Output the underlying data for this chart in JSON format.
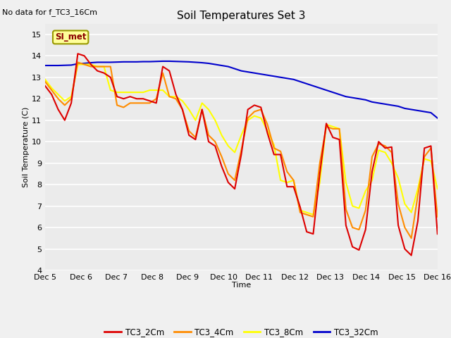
{
  "title": "Soil Temperatures Set 3",
  "subtitle": "No data for f_TC3_16Cm",
  "xlabel": "Time",
  "ylabel": "Soil Temperature (C)",
  "ylim": [
    4.0,
    15.5
  ],
  "figure_bg": "#f0f0f0",
  "plot_bg": "#e8e8e8",
  "si_met_label": "SI_met",
  "legend_entries": [
    "TC3_2Cm",
    "TC3_4Cm",
    "TC3_8Cm",
    "TC3_32Cm"
  ],
  "line_colors": [
    "#dd0000",
    "#ff8c00",
    "#ffff00",
    "#0000cc"
  ],
  "x_tick_labels": [
    "Dec 5",
    "Dec 6",
    "Dec 7",
    "Dec 8",
    "Dec 9",
    "Dec 10",
    "Dec 11",
    "Dec 12",
    "Dec 13",
    "Dec 14",
    "Dec 15",
    "Dec 16"
  ],
  "tc3_2cm": [
    12.6,
    12.2,
    11.5,
    11.0,
    11.8,
    14.1,
    14.0,
    13.6,
    13.3,
    13.2,
    13.0,
    12.1,
    12.0,
    12.1,
    12.0,
    12.0,
    11.9,
    11.8,
    13.5,
    13.3,
    12.2,
    11.5,
    10.3,
    10.1,
    11.5,
    10.0,
    9.8,
    8.85,
    8.1,
    7.8,
    9.4,
    11.5,
    11.7,
    11.6,
    10.4,
    9.4,
    9.4,
    7.9,
    7.9,
    6.95,
    5.8,
    5.7,
    8.5,
    10.85,
    10.2,
    10.1,
    6.1,
    5.1,
    4.95,
    5.9,
    8.6,
    10.0,
    9.7,
    9.75,
    6.1,
    5.0,
    4.7,
    6.3,
    9.7,
    9.8,
    5.7
  ],
  "tc3_4cm": [
    12.8,
    12.4,
    12.0,
    11.7,
    12.0,
    13.7,
    13.6,
    13.5,
    13.5,
    13.5,
    13.5,
    11.7,
    11.6,
    11.8,
    11.8,
    11.8,
    11.8,
    12.0,
    13.2,
    12.1,
    12.0,
    11.5,
    10.5,
    10.2,
    11.5,
    10.3,
    10.0,
    9.3,
    8.5,
    8.2,
    9.6,
    11.1,
    11.4,
    11.5,
    10.8,
    9.7,
    9.55,
    8.6,
    8.2,
    6.7,
    6.6,
    6.5,
    9.0,
    10.7,
    10.6,
    10.6,
    6.85,
    6.0,
    5.9,
    6.8,
    9.3,
    9.9,
    9.8,
    9.5,
    7.1,
    6.0,
    5.5,
    7.5,
    9.3,
    9.7,
    6.5
  ],
  "tc3_8cm": [
    12.9,
    12.5,
    12.2,
    11.9,
    12.1,
    13.6,
    13.6,
    13.6,
    13.5,
    13.5,
    12.4,
    12.3,
    12.3,
    12.3,
    12.3,
    12.3,
    12.4,
    12.4,
    12.4,
    12.1,
    12.1,
    11.9,
    11.5,
    11.0,
    11.8,
    11.5,
    11.0,
    10.3,
    9.8,
    9.5,
    10.3,
    11.0,
    11.2,
    11.1,
    10.5,
    9.85,
    8.2,
    8.1,
    8.2,
    6.8,
    6.7,
    6.6,
    8.1,
    10.8,
    10.7,
    10.6,
    8.1,
    7.0,
    6.9,
    7.7,
    8.2,
    9.6,
    9.5,
    9.0,
    8.3,
    7.1,
    6.7,
    7.8,
    9.2,
    9.1,
    7.8
  ],
  "tc3_32cm": [
    13.55,
    13.55,
    13.55,
    13.56,
    13.57,
    13.63,
    13.65,
    13.68,
    13.7,
    13.7,
    13.7,
    13.71,
    13.72,
    13.72,
    13.72,
    13.73,
    13.73,
    13.74,
    13.75,
    13.75,
    13.74,
    13.73,
    13.72,
    13.7,
    13.68,
    13.65,
    13.6,
    13.55,
    13.5,
    13.4,
    13.3,
    13.25,
    13.2,
    13.15,
    13.1,
    13.05,
    13.0,
    12.95,
    12.9,
    12.8,
    12.7,
    12.6,
    12.5,
    12.4,
    12.3,
    12.2,
    12.1,
    12.05,
    12.0,
    11.95,
    11.85,
    11.8,
    11.75,
    11.7,
    11.65,
    11.55,
    11.5,
    11.45,
    11.4,
    11.35,
    11.1
  ]
}
